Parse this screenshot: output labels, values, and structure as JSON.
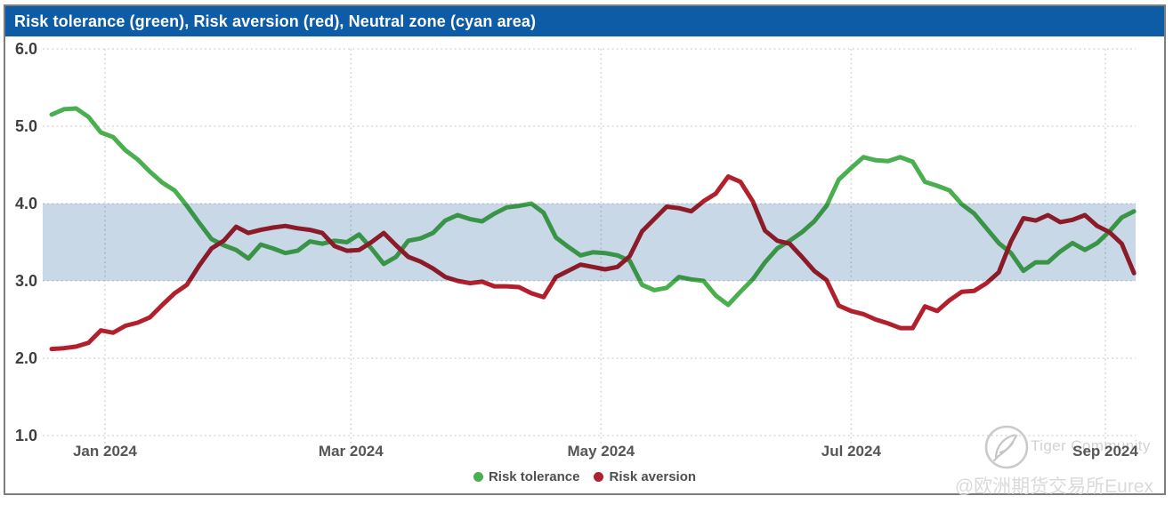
{
  "widget": {
    "title": "Risk tolerance (green), Risk aversion (red), Neutral zone (cyan area)"
  },
  "colors": {
    "title_bar": "#0e5ca6",
    "neutral_band": "#c8d8e7",
    "risk_tolerance": "#4aaf4e",
    "risk_aversion": "#b2202d",
    "gridline": "#d7d7d7",
    "border": "#7d7d7d"
  },
  "legend": [
    {
      "label": "Risk tolerance",
      "color": "#4aaf4e"
    },
    {
      "label": "Risk aversion",
      "color": "#b2202d"
    }
  ],
  "watermarks": {
    "logo": "tiger-quill-logo",
    "community": "Tiger Community",
    "handle": "@欧洲期货交易所Eurex"
  },
  "chart_data": {
    "type": "line",
    "title": "Risk tolerance (green), Risk aversion (red), Neutral zone (cyan area)",
    "grid": "dotted",
    "legend_position": "bottom",
    "x_axis": {
      "start_date": "2023-12-19",
      "step_days": 3,
      "tick_dates": [
        "2024-01-01",
        "2024-03-01",
        "2024-05-01",
        "2024-07-01",
        "2024-09-01"
      ],
      "tick_labels": [
        "Jan 2024",
        "Mar 2024",
        "May 2024",
        "Jul 2024",
        "Sep 2024"
      ]
    },
    "y_axis": {
      "min": 1.0,
      "max": 6.0,
      "tick_step": 1.0,
      "tick_labels": [
        "6.0",
        "5.0",
        "4.0",
        "3.0",
        "2.0",
        "1.0"
      ]
    },
    "neutral_zone": {
      "from": 3.0,
      "to": 4.0,
      "label": "Neutral zone (cyan area)",
      "color": "#c8d8e7"
    },
    "series": [
      {
        "name": "Risk tolerance",
        "color": "#4aaf4e",
        "values": [
          5.15,
          5.22,
          5.23,
          5.12,
          4.92,
          4.86,
          4.69,
          4.57,
          4.41,
          4.27,
          4.17,
          3.97,
          3.75,
          3.54,
          3.46,
          3.4,
          3.29,
          3.47,
          3.42,
          3.36,
          3.39,
          3.51,
          3.48,
          3.52,
          3.5,
          3.6,
          3.42,
          3.22,
          3.31,
          3.52,
          3.55,
          3.62,
          3.78,
          3.85,
          3.8,
          3.77,
          3.87,
          3.95,
          3.97,
          4.0,
          3.88,
          3.56,
          3.44,
          3.33,
          3.37,
          3.36,
          3.33,
          3.26,
          2.95,
          2.88,
          2.91,
          3.05,
          3.02,
          3.0,
          2.81,
          2.69,
          2.86,
          3.02,
          3.24,
          3.42,
          3.52,
          3.63,
          3.77,
          3.97,
          4.31,
          4.46,
          4.6,
          4.56,
          4.55,
          4.6,
          4.54,
          4.28,
          4.23,
          4.17,
          3.99,
          3.87,
          3.68,
          3.49,
          3.36,
          3.13,
          3.24,
          3.24,
          3.38,
          3.49,
          3.4,
          3.49,
          3.64,
          3.82,
          3.9
        ]
      },
      {
        "name": "Risk aversion",
        "color": "#b2202d",
        "values": [
          2.12,
          2.13,
          2.15,
          2.2,
          2.36,
          2.33,
          2.42,
          2.46,
          2.53,
          2.69,
          2.84,
          2.95,
          3.2,
          3.42,
          3.52,
          3.7,
          3.62,
          3.66,
          3.69,
          3.71,
          3.68,
          3.66,
          3.62,
          3.45,
          3.39,
          3.4,
          3.5,
          3.62,
          3.46,
          3.31,
          3.25,
          3.16,
          3.05,
          3.0,
          2.97,
          2.99,
          2.93,
          2.93,
          2.92,
          2.84,
          2.79,
          3.05,
          3.13,
          3.21,
          3.18,
          3.15,
          3.18,
          3.32,
          3.64,
          3.8,
          3.96,
          3.94,
          3.9,
          4.03,
          4.13,
          4.35,
          4.28,
          4.03,
          3.65,
          3.52,
          3.48,
          3.31,
          3.13,
          3.01,
          2.68,
          2.61,
          2.57,
          2.5,
          2.45,
          2.39,
          2.39,
          2.67,
          2.61,
          2.75,
          2.86,
          2.87,
          2.97,
          3.11,
          3.51,
          3.81,
          3.78,
          3.85,
          3.76,
          3.79,
          3.85,
          3.71,
          3.63,
          3.48,
          3.1
        ]
      }
    ]
  }
}
